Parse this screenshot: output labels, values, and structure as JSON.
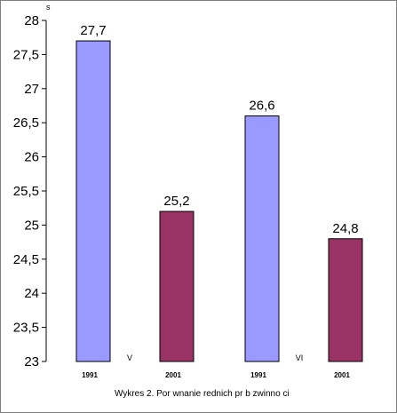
{
  "chart_data": {
    "type": "bar",
    "title": "",
    "caption": "Wykres 2. Por  wnanie  rednich pr  b zwinno  ci",
    "ylabel": "s",
    "xlabel": "",
    "ylim": [
      23,
      28
    ],
    "ytick_step": 0.5,
    "ytick_labels": [
      "23",
      "23,5",
      "24",
      "24,5",
      "25",
      "25,5",
      "26",
      "26,5",
      "27",
      "27,5",
      "28"
    ],
    "grid": false,
    "legend": "none",
    "groups": [
      "V",
      "VI"
    ],
    "categories": [
      "1991",
      "2001",
      "1991",
      "2001"
    ],
    "values": [
      27.7,
      25.2,
      26.6,
      24.8
    ],
    "value_labels": [
      "27,7",
      "25,2",
      "26,6",
      "24,8"
    ],
    "colors": [
      "#9999ff",
      "#993366",
      "#9999ff",
      "#993366"
    ],
    "axis_color": "#000000"
  }
}
